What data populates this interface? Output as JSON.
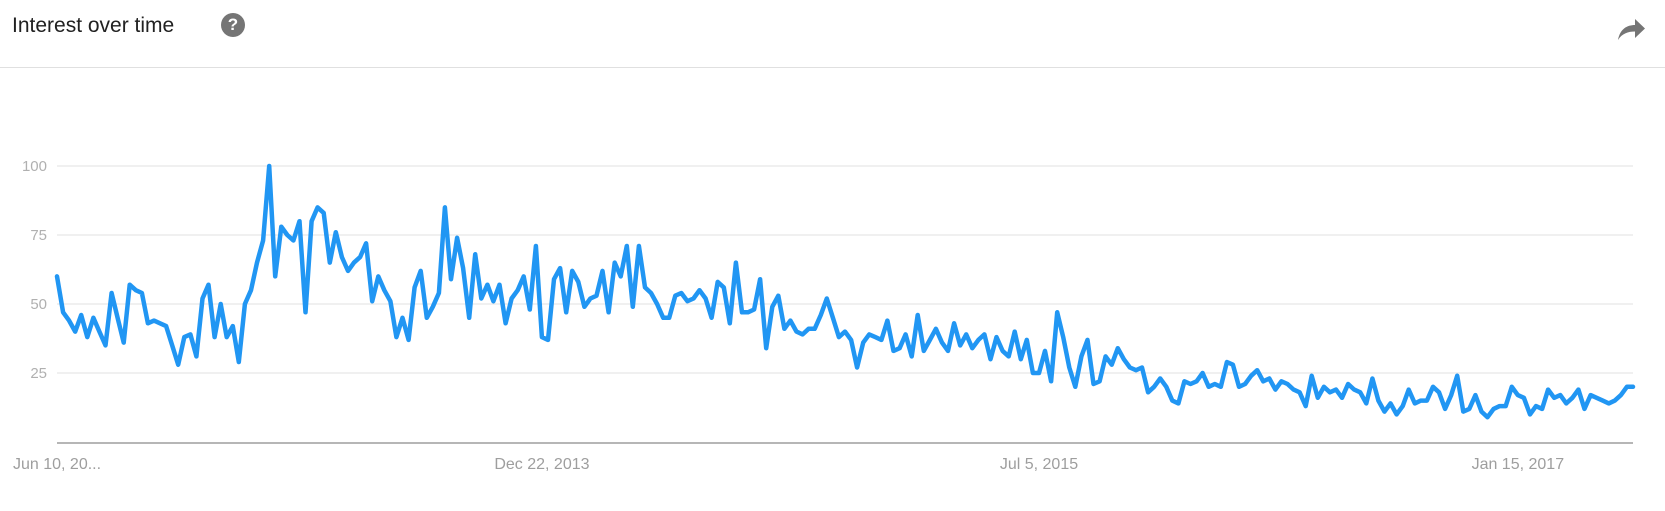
{
  "header": {
    "title": "Interest over time",
    "help_icon": "help-circle-icon",
    "share_icon": "share-arrow-icon"
  },
  "colors": {
    "line": "#2196f3",
    "grid": "#e0e0e0",
    "axis": "#9e9e9e"
  },
  "chart_data": {
    "type": "line",
    "title": "Interest over time",
    "xlabel": "",
    "ylabel": "",
    "ylim": [
      0,
      100
    ],
    "grid": true,
    "y_ticks": [
      25,
      50,
      75,
      100
    ],
    "x_ticks": [
      {
        "label": "Jun 10, 20...",
        "index": 0
      },
      {
        "label": "Dec 22, 2013",
        "index": 80
      },
      {
        "label": "Jul 5, 2015",
        "index": 162
      },
      {
        "label": "Jan 15, 2017",
        "index": 241
      }
    ],
    "series": [
      {
        "values": [
          60,
          47,
          44,
          40,
          46,
          38,
          45,
          40,
          35,
          54,
          45,
          36,
          57,
          55,
          54,
          43,
          44,
          43,
          42,
          35,
          28,
          38,
          39,
          31,
          52,
          57,
          38,
          50,
          38,
          42,
          29,
          50,
          55,
          65,
          73,
          100,
          60,
          78,
          75,
          73,
          80,
          47,
          80,
          85,
          83,
          65,
          76,
          67,
          62,
          65,
          67,
          72,
          51,
          60,
          55,
          51,
          38,
          45,
          37,
          56,
          62,
          45,
          49,
          54,
          85,
          59,
          74,
          63,
          45,
          68,
          52,
          57,
          51,
          57,
          43,
          52,
          55,
          60,
          48,
          71,
          38,
          37,
          59,
          63,
          47,
          62,
          58,
          49,
          52,
          53,
          62,
          47,
          65,
          60,
          71,
          49,
          71,
          56,
          54,
          50,
          45,
          45,
          53,
          54,
          51,
          52,
          55,
          52,
          45,
          58,
          56,
          43,
          65,
          47,
          47,
          48,
          59,
          34,
          49,
          53,
          41,
          44,
          40,
          39,
          41,
          41,
          46,
          52,
          45,
          38,
          40,
          37,
          27,
          36,
          39,
          38,
          37,
          44,
          33,
          34,
          39,
          31,
          46,
          33,
          37,
          41,
          36,
          33,
          43,
          35,
          39,
          34,
          37,
          39,
          30,
          38,
          33,
          31,
          40,
          30,
          37,
          25,
          25,
          33,
          22,
          47,
          38,
          27,
          20,
          31,
          37,
          21,
          22,
          31,
          28,
          34,
          30,
          27,
          26,
          27,
          18,
          20,
          23,
          20,
          15,
          14,
          22,
          21,
          22,
          25,
          20,
          21,
          20,
          29,
          28,
          20,
          21,
          24,
          26,
          22,
          23,
          19,
          22,
          21,
          19,
          18,
          13,
          24,
          16,
          20,
          18,
          19,
          16,
          21,
          19,
          18,
          14,
          23,
          15,
          11,
          14,
          10,
          13,
          19,
          14,
          15,
          15,
          20,
          18,
          12,
          17,
          24,
          11,
          12,
          17,
          11,
          9,
          12,
          13,
          13,
          20,
          17,
          16,
          10,
          13,
          12,
          19,
          16,
          17,
          14,
          16,
          19,
          12,
          17,
          16,
          15,
          14,
          15,
          17,
          20,
          20
        ]
      }
    ]
  }
}
